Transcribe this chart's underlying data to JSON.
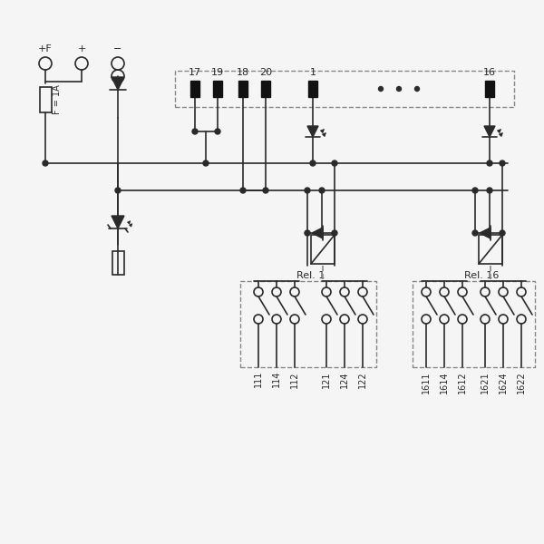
{
  "bg_color": "#f5f5f5",
  "line_color": "#2a2a2a",
  "dashed_color": "#888888",
  "conn_labels": [
    "17",
    "19",
    "18",
    "20",
    "1",
    "16"
  ],
  "terminal_labels_1": [
    "111",
    "114",
    "112",
    "121",
    "124",
    "122"
  ],
  "terminal_labels_16": [
    "1611",
    "1614",
    "1612",
    "1621",
    "1624",
    "1622"
  ],
  "relay_labels": [
    "Rel. 1",
    "Rel. 16"
  ]
}
